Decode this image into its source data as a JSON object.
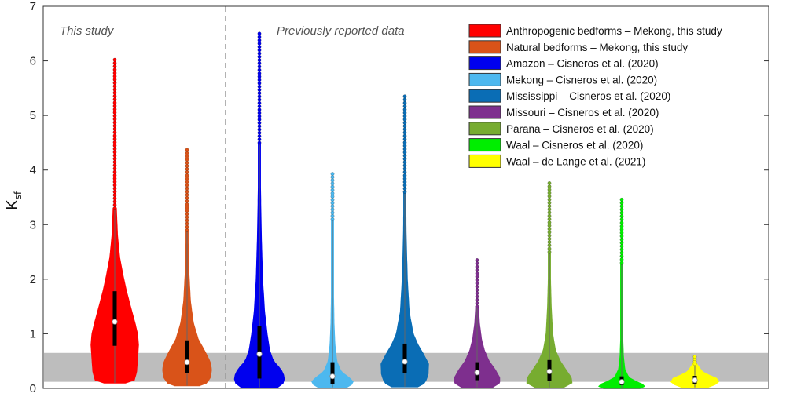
{
  "chart_data": {
    "type": "violin",
    "ylabel": "K",
    "ylabel_subscript": "sf",
    "ylim": [
      0,
      7
    ],
    "yticks": [
      "0",
      "1",
      "2",
      "3",
      "4",
      "5",
      "6",
      "7"
    ],
    "grid": false,
    "legend_position": "top-right",
    "shaded_band": [
      0.12,
      0.65
    ],
    "annotations": {
      "left": "This study",
      "right": "Previously reported data"
    },
    "series": [
      {
        "name": "Anthropogenic bedforms – Mekong, this study",
        "color": "#ff0000",
        "median": 1.22,
        "q1": 0.78,
        "q3": 1.78,
        "min": 0.1,
        "max": 6.02,
        "upper_continuous": 3.3,
        "profile": [
          [
            0.1,
            0.45
          ],
          [
            0.15,
            0.82
          ],
          [
            0.3,
            0.92
          ],
          [
            0.6,
            0.97
          ],
          [
            0.8,
            1.0
          ],
          [
            1.0,
            0.96
          ],
          [
            1.2,
            0.85
          ],
          [
            1.5,
            0.66
          ],
          [
            1.8,
            0.48
          ],
          [
            2.1,
            0.33
          ],
          [
            2.4,
            0.2
          ],
          [
            2.8,
            0.11
          ],
          [
            3.3,
            0.06
          ]
        ]
      },
      {
        "name": "Natural bedforms – Mekong, this study",
        "color": "#d95319",
        "median": 0.48,
        "q1": 0.28,
        "q3": 0.88,
        "min": 0.05,
        "max": 4.37,
        "upper_continuous": 2.9,
        "profile": [
          [
            0.05,
            0.5
          ],
          [
            0.1,
            0.8
          ],
          [
            0.2,
            0.95
          ],
          [
            0.35,
            1.0
          ],
          [
            0.5,
            0.93
          ],
          [
            0.7,
            0.7
          ],
          [
            0.9,
            0.45
          ],
          [
            1.2,
            0.25
          ],
          [
            1.6,
            0.13
          ],
          [
            2.2,
            0.06
          ],
          [
            2.9,
            0.03
          ]
        ]
      },
      {
        "name": "Amazon – Cisneros et al. (2020)",
        "color": "#0000ee",
        "median": 0.63,
        "q1": 0.18,
        "q3": 1.14,
        "min": 0.02,
        "max": 6.5,
        "upper_continuous": 4.5,
        "profile": [
          [
            0.02,
            0.72
          ],
          [
            0.1,
            0.95
          ],
          [
            0.2,
            1.0
          ],
          [
            0.35,
            0.85
          ],
          [
            0.5,
            0.55
          ],
          [
            0.7,
            0.4
          ],
          [
            1.0,
            0.3
          ],
          [
            1.4,
            0.2
          ],
          [
            2.0,
            0.12
          ],
          [
            2.8,
            0.07
          ],
          [
            3.6,
            0.04
          ],
          [
            4.5,
            0.02
          ]
        ]
      },
      {
        "name": "Mekong – Cisneros et al. (2020)",
        "color": "#4db8ef",
        "median": 0.22,
        "q1": 0.08,
        "q3": 0.48,
        "min": 0.02,
        "max": 3.93,
        "upper_continuous": 3.1,
        "profile": [
          [
            0.02,
            0.62
          ],
          [
            0.1,
            0.95
          ],
          [
            0.2,
            0.72
          ],
          [
            0.3,
            0.38
          ],
          [
            0.5,
            0.18
          ],
          [
            0.8,
            0.1
          ],
          [
            1.2,
            0.06
          ],
          [
            2.0,
            0.03
          ],
          [
            3.1,
            0.02
          ]
        ]
      },
      {
        "name": "Mississippi – Cisneros et al. (2020)",
        "color": "#0a6db5",
        "median": 0.49,
        "q1": 0.28,
        "q3": 0.82,
        "min": 0.03,
        "max": 5.35,
        "upper_continuous": 3.6,
        "profile": [
          [
            0.03,
            0.55
          ],
          [
            0.1,
            0.85
          ],
          [
            0.25,
            0.98
          ],
          [
            0.45,
            1.0
          ],
          [
            0.6,
            0.82
          ],
          [
            0.8,
            0.55
          ],
          [
            1.0,
            0.35
          ],
          [
            1.4,
            0.18
          ],
          [
            2.0,
            0.1
          ],
          [
            2.8,
            0.05
          ],
          [
            3.6,
            0.03
          ]
        ]
      },
      {
        "name": "Missouri – Cisneros et al. (2020)",
        "color": "#7e2f8e",
        "median": 0.29,
        "q1": 0.15,
        "q3": 0.48,
        "min": 0.02,
        "max": 2.35,
        "upper_continuous": 1.5,
        "profile": [
          [
            0.02,
            0.65
          ],
          [
            0.1,
            0.95
          ],
          [
            0.2,
            0.95
          ],
          [
            0.35,
            0.75
          ],
          [
            0.5,
            0.5
          ],
          [
            0.7,
            0.3
          ],
          [
            0.9,
            0.18
          ],
          [
            1.2,
            0.09
          ],
          [
            1.5,
            0.05
          ]
        ]
      },
      {
        "name": "Parana – Cisneros et al. (2020)",
        "color": "#77ac30",
        "median": 0.31,
        "q1": 0.14,
        "q3": 0.52,
        "min": 0.02,
        "max": 3.76,
        "upper_continuous": 2.5,
        "profile": [
          [
            0.02,
            0.6
          ],
          [
            0.1,
            0.95
          ],
          [
            0.2,
            0.92
          ],
          [
            0.35,
            0.68
          ],
          [
            0.5,
            0.45
          ],
          [
            0.7,
            0.25
          ],
          [
            1.0,
            0.13
          ],
          [
            1.5,
            0.07
          ],
          [
            2.0,
            0.04
          ],
          [
            2.5,
            0.02
          ]
        ]
      },
      {
        "name": "Waal – Cisneros et al. (2020)",
        "color": "#00ee00",
        "median": 0.12,
        "q1": 0.06,
        "q3": 0.22,
        "min": 0.0,
        "max": 3.46,
        "upper_continuous": 2.3,
        "profile": [
          [
            0.0,
            0.75
          ],
          [
            0.05,
            0.98
          ],
          [
            0.12,
            0.6
          ],
          [
            0.2,
            0.28
          ],
          [
            0.35,
            0.12
          ],
          [
            0.6,
            0.06
          ],
          [
            1.0,
            0.03
          ],
          [
            1.6,
            0.02
          ],
          [
            2.3,
            0.015
          ]
        ]
      },
      {
        "name": "Waal – de Lange et al. (2021)",
        "color": "#ffff00",
        "median": 0.15,
        "q1": 0.08,
        "q3": 0.23,
        "min": 0.02,
        "max": 0.58,
        "upper_continuous": 0.45,
        "profile": [
          [
            0.02,
            0.55
          ],
          [
            0.07,
            0.85
          ],
          [
            0.12,
            1.0
          ],
          [
            0.18,
            0.92
          ],
          [
            0.24,
            0.6
          ],
          [
            0.3,
            0.33
          ],
          [
            0.38,
            0.18
          ],
          [
            0.45,
            0.08
          ]
        ]
      }
    ]
  }
}
